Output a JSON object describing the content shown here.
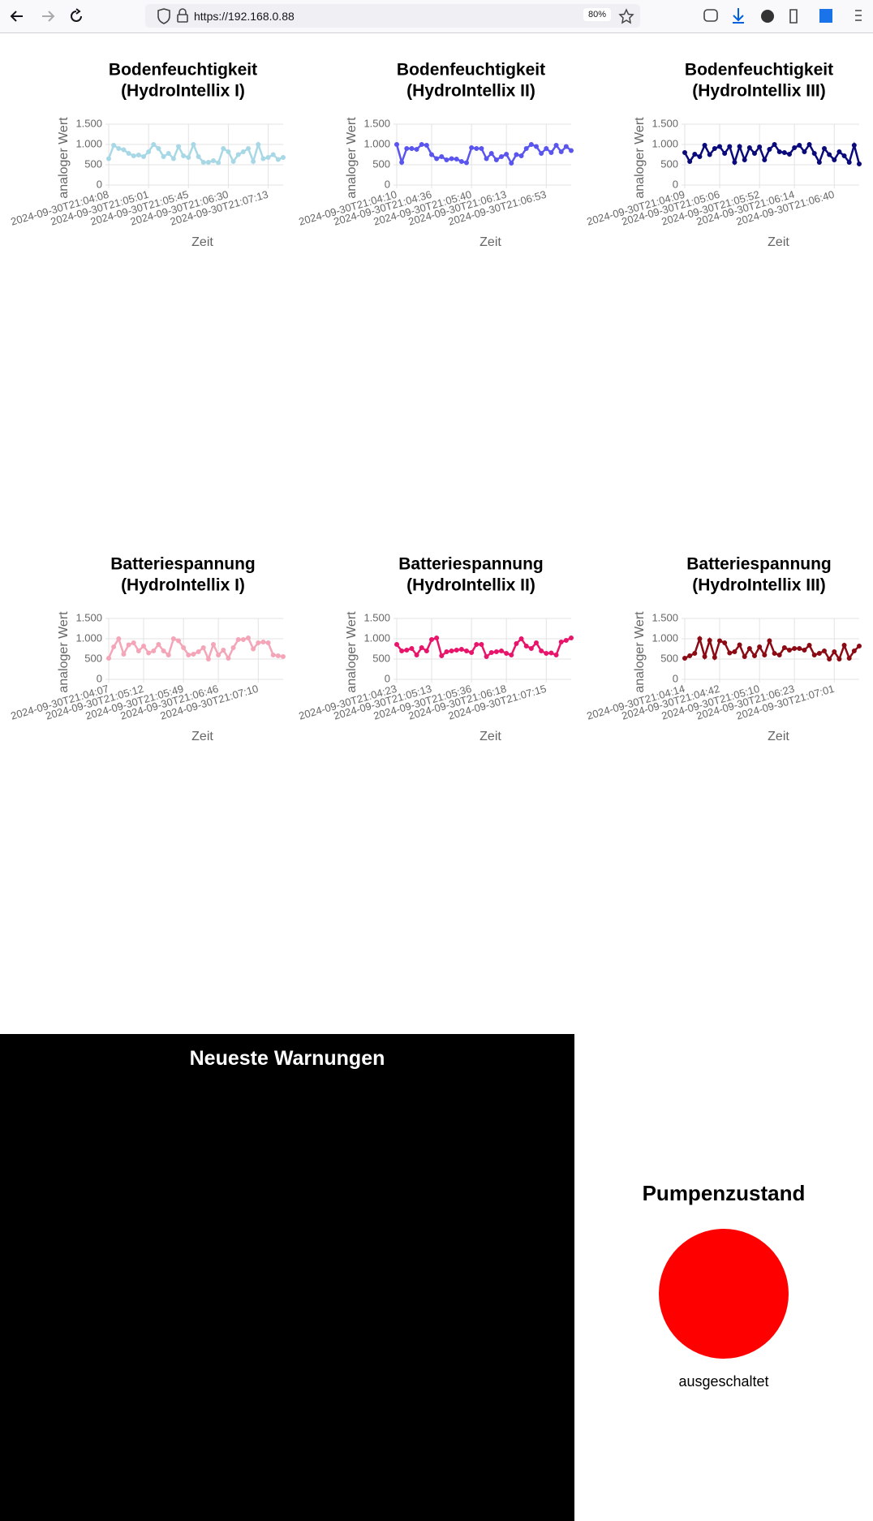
{
  "browser": {
    "url": "https://192.168.0.88",
    "zoom": "80%"
  },
  "chart_data": [
    {
      "type": "line",
      "title": [
        "Bodenfeuchtigkeit",
        "(HydroIntellix I)"
      ],
      "xlabel": "Zeit",
      "ylabel": "analoger Wert",
      "color": "#a8d8e6",
      "ylim": [
        0,
        1500
      ],
      "yticks": [
        0,
        500,
        {
          "value": 1000,
          "label": "1.000"
        },
        {
          "value": 1500,
          "label": "1.500"
        }
      ],
      "grid": true,
      "categories": [
        "2024-09-30T21:04:08",
        null,
        null,
        null,
        null,
        null,
        null,
        null,
        "2024-09-30T21:05:01",
        null,
        null,
        null,
        null,
        null,
        null,
        null,
        "2024-09-30T21:05:45",
        null,
        null,
        null,
        null,
        null,
        null,
        null,
        "2024-09-30T21:06:30",
        null,
        null,
        null,
        null,
        null,
        null,
        null,
        "2024-09-30T21:07:13",
        null,
        null,
        null
      ],
      "values": [
        650,
        980,
        900,
        870,
        780,
        720,
        740,
        700,
        820,
        1000,
        900,
        700,
        780,
        650,
        950,
        720,
        680,
        1000,
        700,
        560,
        560,
        600,
        550,
        900,
        820,
        580,
        750,
        820,
        900,
        580,
        1000,
        650,
        680,
        750,
        630,
        680
      ]
    },
    {
      "type": "line",
      "title": [
        "Bodenfeuchtigkeit",
        "(HydroIntellix II)"
      ],
      "xlabel": "Zeit",
      "ylabel": "analoger Wert",
      "color": "#5a55ee",
      "ylim": [
        0,
        1500
      ],
      "yticks": [
        0,
        500,
        {
          "value": 1000,
          "label": "1.000"
        },
        {
          "value": 1500,
          "label": "1.500"
        }
      ],
      "grid": true,
      "categories": [
        "2024-09-30T21:04:10",
        null,
        null,
        null,
        null,
        null,
        null,
        "2024-09-30T21:04:36",
        null,
        null,
        null,
        null,
        null,
        null,
        null,
        "2024-09-30T21:05:40",
        null,
        null,
        null,
        null,
        null,
        null,
        "2024-09-30T21:06:13",
        null,
        null,
        null,
        null,
        null,
        null,
        null,
        "2024-09-30T21:06:53",
        null,
        null,
        null,
        null,
        null
      ],
      "values": [
        1000,
        560,
        900,
        900,
        880,
        1000,
        980,
        750,
        650,
        700,
        620,
        650,
        640,
        580,
        550,
        920,
        900,
        900,
        650,
        780,
        620,
        700,
        760,
        540,
        750,
        720,
        900,
        1000,
        950,
        780,
        900,
        800,
        980,
        820,
        950,
        850
      ]
    },
    {
      "type": "line",
      "title": [
        "Bodenfeuchtigkeit",
        "(HydroIntellix III)"
      ],
      "xlabel": "Zeit",
      "ylabel": "analoger Wert",
      "color": "#0a0a7a",
      "ylim": [
        0,
        1500
      ],
      "yticks": [
        0,
        500,
        {
          "value": 1000,
          "label": "1.000"
        },
        {
          "value": 1500,
          "label": "1.500"
        }
      ],
      "grid": true,
      "categories": [
        "2024-09-30T21:04:09",
        null,
        null,
        null,
        null,
        null,
        null,
        "2024-09-30T21:05:06",
        null,
        null,
        null,
        null,
        null,
        null,
        null,
        "2024-09-30T21:05:52",
        null,
        null,
        null,
        null,
        null,
        null,
        "2024-09-30T21:06:14",
        null,
        null,
        null,
        null,
        null,
        null,
        null,
        "2024-09-30T21:06:40",
        null,
        null,
        null,
        null,
        null
      ],
      "values": [
        800,
        580,
        760,
        700,
        980,
        750,
        900,
        950,
        780,
        950,
        560,
        950,
        620,
        920,
        780,
        940,
        620,
        880,
        1000,
        820,
        800,
        760,
        920,
        980,
        820,
        1000,
        780,
        560,
        900,
        750,
        620,
        820,
        720,
        560,
        980,
        520
      ]
    },
    {
      "type": "line",
      "title": [
        "Batteriespannung",
        "(HydroIntellix I)"
      ],
      "xlabel": "Zeit",
      "ylabel": "analoger Wert",
      "color": "#f4a6b8",
      "ylim": [
        0,
        1500
      ],
      "yticks": [
        0,
        500,
        {
          "value": 1000,
          "label": "1.000"
        },
        {
          "value": 1500,
          "label": "1.500"
        }
      ],
      "grid": true,
      "categories": [
        "2024-09-30T21:04:07",
        null,
        null,
        null,
        null,
        null,
        null,
        "2024-09-30T21:05:12",
        null,
        null,
        null,
        null,
        null,
        null,
        null,
        "2024-09-30T21:05:49",
        null,
        null,
        null,
        null,
        null,
        null,
        "2024-09-30T21:06:46",
        null,
        null,
        null,
        null,
        null,
        null,
        null,
        "2024-09-30T21:07:10",
        null,
        null,
        null,
        null,
        null
      ],
      "values": [
        520,
        800,
        1000,
        620,
        850,
        900,
        700,
        820,
        650,
        700,
        860,
        700,
        600,
        1000,
        950,
        780,
        600,
        620,
        680,
        780,
        500,
        860,
        600,
        720,
        520,
        780,
        980,
        980,
        1020,
        750,
        900,
        920,
        900,
        600,
        580,
        560
      ]
    },
    {
      "type": "line",
      "title": [
        "Batteriespannung",
        "(HydroIntellix II)"
      ],
      "xlabel": "Zeit",
      "ylabel": "analoger Wert",
      "color": "#e8156b",
      "ylim": [
        0,
        1500
      ],
      "yticks": [
        0,
        500,
        {
          "value": 1000,
          "label": "1.000"
        },
        {
          "value": 1500,
          "label": "1.500"
        }
      ],
      "grid": true,
      "categories": [
        "2024-09-30T21:04:23",
        null,
        null,
        null,
        null,
        null,
        null,
        "2024-09-30T21:05:13",
        null,
        null,
        null,
        null,
        null,
        null,
        null,
        "2024-09-30T21:05:36",
        null,
        null,
        null,
        null,
        null,
        null,
        "2024-09-30T21:06:18",
        null,
        null,
        null,
        null,
        null,
        null,
        null,
        "2024-09-30T21:07:15",
        null,
        null,
        null,
        null,
        null
      ],
      "values": [
        860,
        700,
        720,
        760,
        600,
        780,
        700,
        980,
        1020,
        580,
        680,
        700,
        720,
        740,
        700,
        660,
        860,
        860,
        560,
        660,
        680,
        700,
        640,
        600,
        880,
        1000,
        820,
        760,
        900,
        700,
        640,
        650,
        600,
        920,
        960,
        1020
      ]
    },
    {
      "type": "line",
      "title": [
        "Batteriespannung",
        "(HydroIntellix III)"
      ],
      "xlabel": "Zeit",
      "ylabel": "analoger Wert",
      "color": "#8b0a14",
      "ylim": [
        0,
        1500
      ],
      "yticks": [
        0,
        500,
        {
          "value": 1000,
          "label": "1.000"
        },
        {
          "value": 1500,
          "label": "1.500"
        }
      ],
      "grid": true,
      "categories": [
        "2024-09-30T21:04:14",
        null,
        null,
        null,
        null,
        null,
        null,
        "2024-09-30T21:04:42",
        null,
        null,
        null,
        null,
        null,
        null,
        null,
        "2024-09-30T21:05:10",
        null,
        null,
        null,
        null,
        null,
        null,
        "2024-09-30T21:06:23",
        null,
        null,
        null,
        null,
        null,
        null,
        null,
        "2024-09-30T21:07:01",
        null,
        null,
        null,
        null,
        null
      ],
      "values": [
        520,
        580,
        640,
        1000,
        560,
        960,
        540,
        950,
        900,
        650,
        680,
        850,
        560,
        760,
        580,
        800,
        600,
        950,
        640,
        600,
        780,
        720,
        760,
        760,
        720,
        840,
        600,
        640,
        700,
        500,
        680,
        500,
        840,
        520,
        700,
        820
      ]
    }
  ],
  "warnings": {
    "title": "Neueste Warnungen"
  },
  "pump": {
    "title": "Pumpenzustand",
    "status": "ausgeschaltet",
    "color": "#ff0000"
  }
}
